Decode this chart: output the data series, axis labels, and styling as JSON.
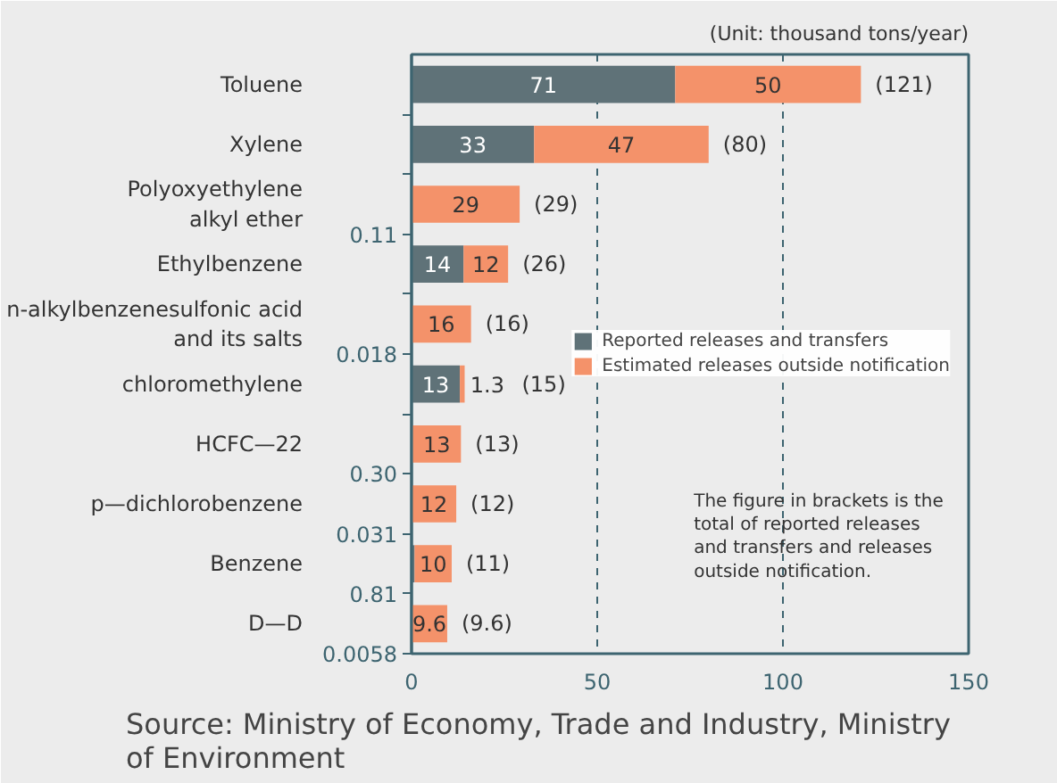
{
  "chart_data": {
    "type": "bar",
    "orientation": "horizontal",
    "stacked": true,
    "categories": [
      "Toluene",
      "Xylene",
      "Polyoxyethylene\nalkyl ether",
      "Ethylbenzene",
      "n-alkylbenzenesulfonic acid\nand its salts",
      "chloromethylene",
      "HCFC—22",
      "p—dichlorobenzene",
      "Benzene",
      "D—D"
    ],
    "series": [
      {
        "name": "Reported releases and transfers",
        "color": "#5f7278",
        "values": [
          71,
          33,
          0.11,
          14,
          0.018,
          13,
          0.3,
          0.031,
          0.81,
          0.0058
        ],
        "value_labels": [
          "71",
          "33",
          "0.11",
          "14",
          "0.018",
          "13",
          "0.30",
          "0.031",
          "0.81",
          "0.0058"
        ]
      },
      {
        "name": "Estimated releases outside notification",
        "color": "#f4926a",
        "values": [
          50,
          47,
          29,
          12,
          16,
          1.3,
          13,
          12,
          10,
          9.6
        ],
        "value_labels": [
          "50",
          "47",
          "29",
          "12",
          "16",
          "1.3",
          "13",
          "12",
          "10",
          "9.6"
        ]
      }
    ],
    "totals": [
      "(121)",
      "(80)",
      "(29)",
      "(26)",
      "(16)",
      "(15)",
      "(13)",
      "(12)",
      "(11)",
      "(9.6)"
    ],
    "xlim": [
      0,
      150
    ],
    "xticks": [
      0,
      50,
      100,
      150
    ],
    "grid": "x",
    "legend": "right",
    "annotations": [
      "(Unit: thousand tons/year)",
      "The figure in brackets is the\n total of reported releases\nand transfers and releases\noutside notification.",
      "Source: Ministry of Economy, Trade and Industry, Ministry\n            of Environment"
    ]
  }
}
